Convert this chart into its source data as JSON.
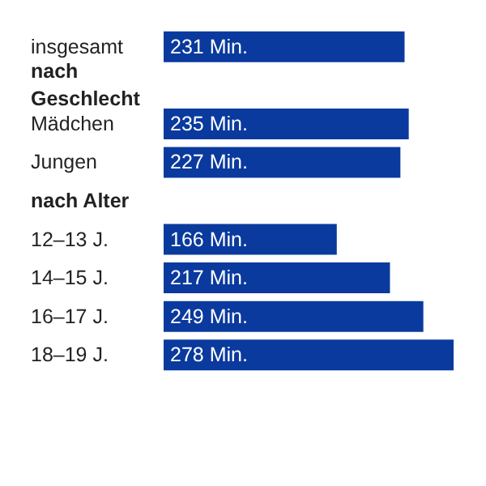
{
  "chart_data": {
    "type": "bar",
    "orientation": "horizontal",
    "categories": [
      "insgesamt",
      "nach Geschlecht",
      "Mädchen",
      "Jungen",
      "nach Alter",
      "12–13 J.",
      "14–15 J.",
      "16–17 J.",
      "18–19 J."
    ],
    "values": [
      231,
      null,
      235,
      227,
      null,
      166,
      217,
      249,
      278
    ],
    "value_labels": [
      "231 Min.",
      null,
      "235 Min.",
      "227 Min.",
      null,
      "166 Min.",
      "217 Min.",
      "249 Min.",
      "278 Min."
    ],
    "color": "#0a3a9e",
    "tick_labels": "y"
  }
}
